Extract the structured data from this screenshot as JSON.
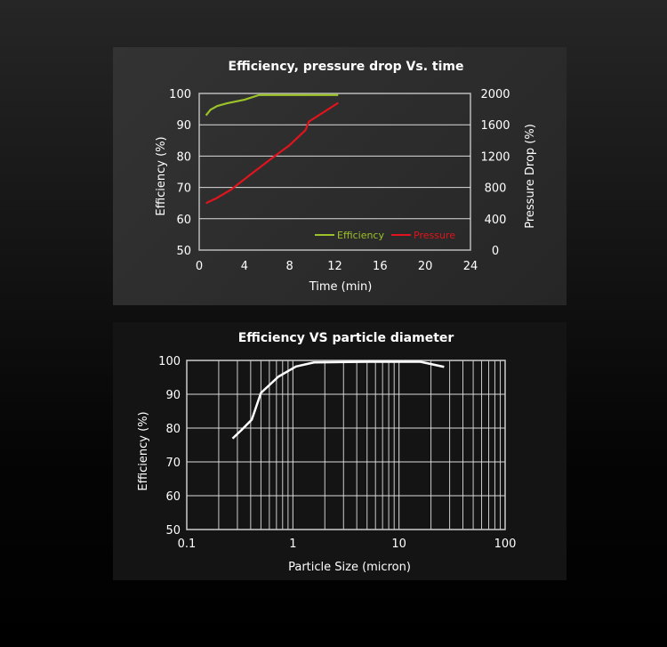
{
  "chart_data": [
    {
      "type": "line",
      "title": "Efficiency, pressure drop Vs. time",
      "xlabel": "Time (min)",
      "ylabel": "Efficiency (%)",
      "y2label": "Pressure Drop (%)",
      "xlim": [
        0,
        24
      ],
      "ylim": [
        50,
        100
      ],
      "y2lim": [
        0,
        2000
      ],
      "xticks": [
        0,
        4,
        8,
        12,
        16,
        20,
        24
      ],
      "yticks": [
        50,
        60,
        70,
        80,
        90,
        100
      ],
      "y2ticks": [
        0,
        400,
        800,
        1200,
        1600,
        2000
      ],
      "grid": "horizontal",
      "legend": "bottom-right",
      "series": [
        {
          "name": "Efficiency",
          "axis": "left",
          "color": "#9cc229",
          "x": [
            0.6,
            1.0,
            1.6,
            2.5,
            4.0,
            5.3,
            8,
            12.3
          ],
          "y": [
            93,
            94.8,
            96,
            96.9,
            98,
            99.5,
            99.5,
            99.5
          ]
        },
        {
          "name": "Pressure",
          "axis": "right",
          "color": "#e0141c",
          "x": [
            0.6,
            1.5,
            2.8,
            4.5,
            6.5,
            8,
            9.4,
            9.7,
            11,
            12.3
          ],
          "y": [
            600,
            660,
            770,
            960,
            1180,
            1340,
            1530,
            1640,
            1760,
            1880
          ]
        }
      ]
    },
    {
      "type": "line",
      "title": "Efficiency VS particle diameter",
      "xlabel": "Particle Size (micron)",
      "ylabel": "Efficiency (%)",
      "xscale": "log",
      "xlim": [
        0.1,
        100
      ],
      "ylim": [
        50,
        100
      ],
      "xticks": [
        "0.1",
        "1",
        "10",
        "100"
      ],
      "yticks": [
        50,
        60,
        70,
        80,
        90,
        100
      ],
      "grid": "both",
      "series": [
        {
          "color": "#ffffff",
          "x": [
            0.27,
            0.33,
            0.41,
            0.5,
            0.73,
            1.07,
            1.58,
            5,
            15.9,
            26.6
          ],
          "y": [
            76.9,
            79.5,
            82.5,
            90.4,
            95.2,
            98.2,
            99.4,
            99.6,
            99.6,
            98.1
          ]
        }
      ]
    }
  ]
}
